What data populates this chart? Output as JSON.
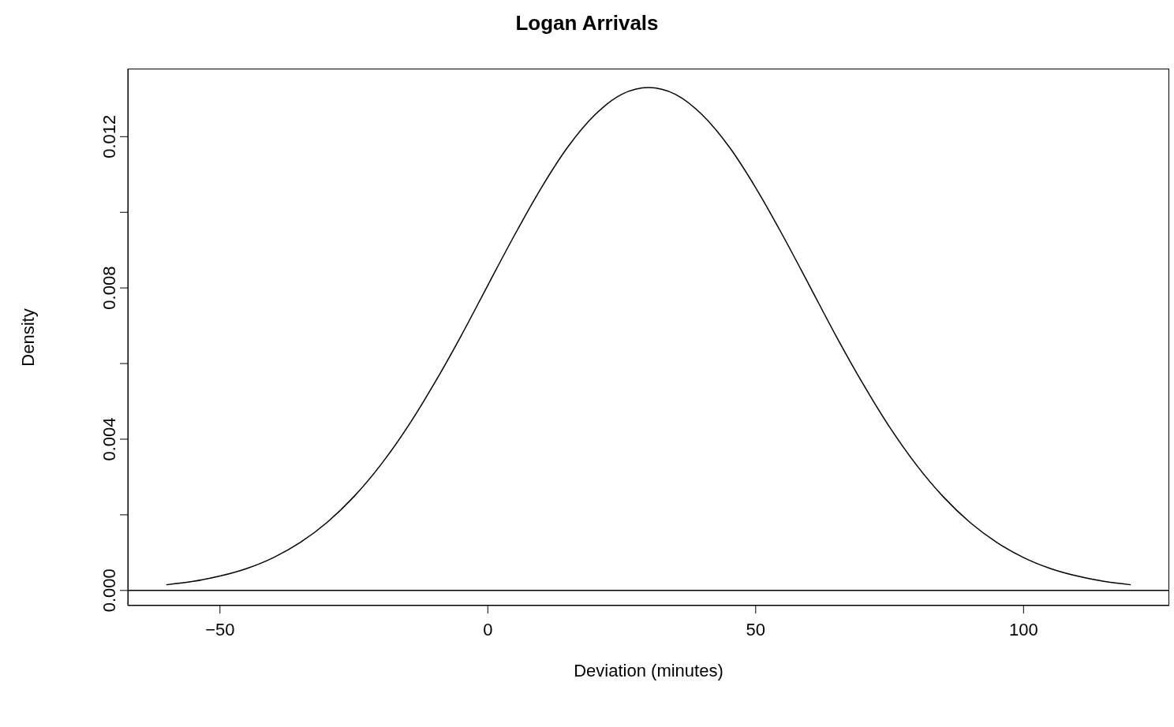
{
  "chart_data": {
    "type": "line",
    "title": "Logan Arrivals",
    "xlabel": "Deviation (minutes)",
    "ylabel": "Density",
    "x": [
      -60,
      -55,
      -50,
      -45,
      -40,
      -35,
      -30,
      -25,
      -20,
      -15,
      -10,
      -5,
      0,
      5,
      10,
      15,
      20,
      25,
      30,
      35,
      40,
      45,
      50,
      55,
      60,
      65,
      70,
      75,
      80,
      85,
      90,
      95,
      100,
      105,
      110,
      115,
      120
    ],
    "series": [
      {
        "color": "#000000",
        "values": [
          0.00015,
          0.00024,
          0.00038,
          0.00058,
          0.00087,
          0.00127,
          0.0018,
          0.00248,
          0.00332,
          0.00432,
          0.00547,
          0.00673,
          0.00807,
          0.0094,
          0.01065,
          0.01174,
          0.01258,
          0.01312,
          0.0133,
          0.01312,
          0.01258,
          0.01174,
          0.01065,
          0.0094,
          0.00807,
          0.00673,
          0.00547,
          0.00432,
          0.00332,
          0.00248,
          0.0018,
          0.00127,
          0.00087,
          0.00058,
          0.00038,
          0.00024,
          0.00015
        ]
      }
    ],
    "xlim": [
      -67.2,
      127.2
    ],
    "xticks": [
      {
        "value": -50,
        "label": "−50"
      },
      0,
      50,
      100
    ],
    "ylim": [
      -0.0004,
      0.0138
    ],
    "yticks": [
      {
        "value": 0,
        "label": "0.000"
      },
      {
        "value": 0.002,
        "label": null
      },
      {
        "value": 0.004,
        "label": "0.004"
      },
      {
        "value": 0.006,
        "label": null
      },
      {
        "value": 0.008,
        "label": "0.008"
      },
      {
        "value": 0.01,
        "label": null
      },
      {
        "value": 0.012,
        "label": "0.012"
      }
    ],
    "ref_lines": [
      {
        "axis": "y",
        "value": 0,
        "color": "#000000"
      }
    ],
    "grid": false,
    "legend": false,
    "marker": "none",
    "line_style": "solid"
  }
}
